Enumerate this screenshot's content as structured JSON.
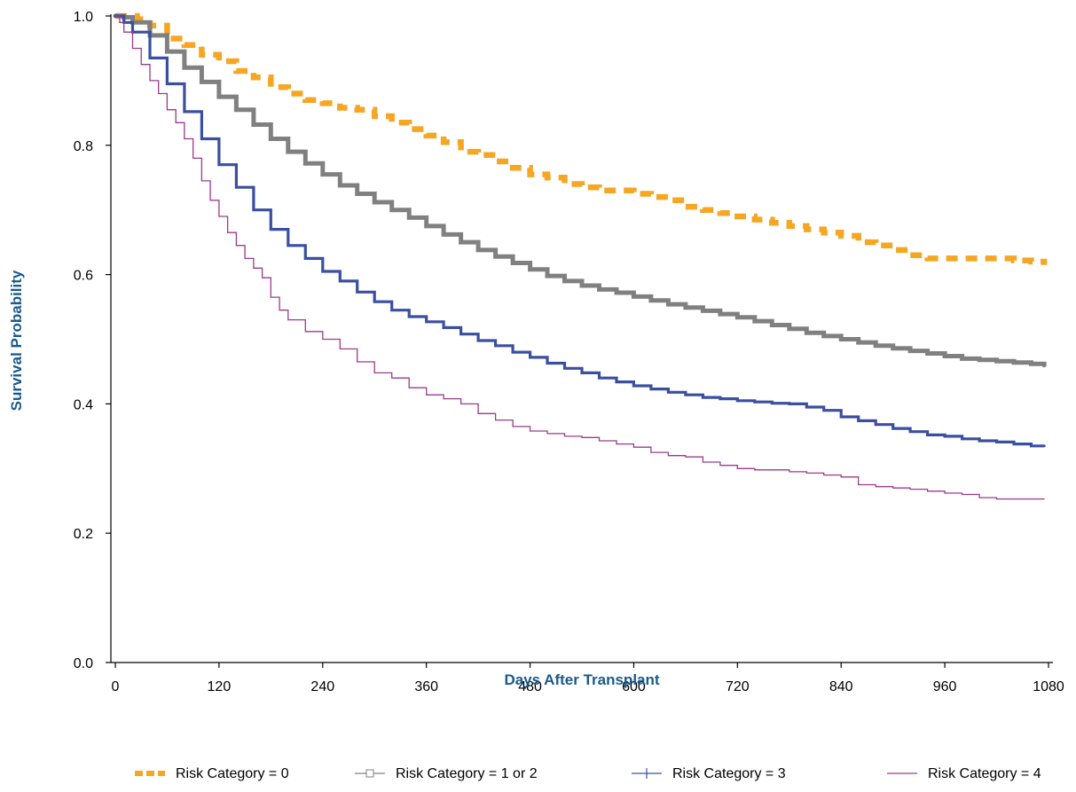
{
  "chart_data": {
    "type": "line",
    "title": "",
    "xlabel": "Days After Transplant",
    "ylabel": "Survival Probability",
    "xlim": [
      0,
      1080
    ],
    "ylim": [
      0,
      1
    ],
    "x_ticks": [
      "0",
      "120",
      "240",
      "360",
      "480",
      "600",
      "720",
      "840",
      "960",
      "1080"
    ],
    "y_ticks": [
      "0.0",
      "0.2",
      "0.4",
      "0.6",
      "0.8",
      "1.0"
    ],
    "grid": false,
    "legend_position": "bottom",
    "series": [
      {
        "name": "Risk Category = 0",
        "color": "#f5a623",
        "style": "dashed-thick",
        "points": [
          [
            0,
            1.0
          ],
          [
            15,
            1.0
          ],
          [
            25,
            0.995
          ],
          [
            40,
            0.985
          ],
          [
            60,
            0.965
          ],
          [
            80,
            0.955
          ],
          [
            100,
            0.94
          ],
          [
            120,
            0.93
          ],
          [
            140,
            0.915
          ],
          [
            160,
            0.905
          ],
          [
            180,
            0.89
          ],
          [
            200,
            0.88
          ],
          [
            220,
            0.87
          ],
          [
            240,
            0.865
          ],
          [
            260,
            0.858
          ],
          [
            280,
            0.855
          ],
          [
            300,
            0.845
          ],
          [
            320,
            0.835
          ],
          [
            340,
            0.825
          ],
          [
            360,
            0.815
          ],
          [
            380,
            0.805
          ],
          [
            400,
            0.79
          ],
          [
            420,
            0.785
          ],
          [
            440,
            0.775
          ],
          [
            460,
            0.765
          ],
          [
            480,
            0.755
          ],
          [
            500,
            0.75
          ],
          [
            520,
            0.74
          ],
          [
            540,
            0.735
          ],
          [
            560,
            0.73
          ],
          [
            580,
            0.73
          ],
          [
            600,
            0.725
          ],
          [
            620,
            0.72
          ],
          [
            640,
            0.715
          ],
          [
            660,
            0.705
          ],
          [
            680,
            0.7
          ],
          [
            700,
            0.695
          ],
          [
            720,
            0.69
          ],
          [
            740,
            0.685
          ],
          [
            760,
            0.68
          ],
          [
            780,
            0.675
          ],
          [
            800,
            0.67
          ],
          [
            820,
            0.665
          ],
          [
            840,
            0.66
          ],
          [
            860,
            0.65
          ],
          [
            880,
            0.645
          ],
          [
            900,
            0.638
          ],
          [
            920,
            0.63
          ],
          [
            940,
            0.625
          ],
          [
            960,
            0.625
          ],
          [
            980,
            0.625
          ],
          [
            1000,
            0.625
          ],
          [
            1020,
            0.625
          ],
          [
            1040,
            0.622
          ],
          [
            1060,
            0.62
          ],
          [
            1075,
            0.615
          ]
        ]
      },
      {
        "name": "Risk Category = 1 or 2",
        "color": "#808080",
        "style": "solid-thick",
        "points": [
          [
            0,
            1.0
          ],
          [
            10,
            0.998
          ],
          [
            20,
            0.99
          ],
          [
            40,
            0.97
          ],
          [
            60,
            0.945
          ],
          [
            80,
            0.92
          ],
          [
            100,
            0.898
          ],
          [
            120,
            0.875
          ],
          [
            140,
            0.855
          ],
          [
            160,
            0.832
          ],
          [
            180,
            0.81
          ],
          [
            200,
            0.79
          ],
          [
            220,
            0.772
          ],
          [
            240,
            0.755
          ],
          [
            260,
            0.738
          ],
          [
            280,
            0.725
          ],
          [
            300,
            0.712
          ],
          [
            320,
            0.7
          ],
          [
            340,
            0.688
          ],
          [
            360,
            0.675
          ],
          [
            380,
            0.662
          ],
          [
            400,
            0.65
          ],
          [
            420,
            0.638
          ],
          [
            440,
            0.628
          ],
          [
            460,
            0.618
          ],
          [
            480,
            0.608
          ],
          [
            500,
            0.598
          ],
          [
            520,
            0.59
          ],
          [
            540,
            0.583
          ],
          [
            560,
            0.577
          ],
          [
            580,
            0.572
          ],
          [
            600,
            0.566
          ],
          [
            620,
            0.56
          ],
          [
            640,
            0.554
          ],
          [
            660,
            0.549
          ],
          [
            680,
            0.544
          ],
          [
            700,
            0.539
          ],
          [
            720,
            0.534
          ],
          [
            740,
            0.528
          ],
          [
            760,
            0.522
          ],
          [
            780,
            0.516
          ],
          [
            800,
            0.51
          ],
          [
            820,
            0.505
          ],
          [
            840,
            0.5
          ],
          [
            860,
            0.495
          ],
          [
            880,
            0.49
          ],
          [
            900,
            0.486
          ],
          [
            920,
            0.482
          ],
          [
            940,
            0.478
          ],
          [
            960,
            0.474
          ],
          [
            980,
            0.47
          ],
          [
            1000,
            0.468
          ],
          [
            1020,
            0.466
          ],
          [
            1040,
            0.464
          ],
          [
            1060,
            0.462
          ],
          [
            1075,
            0.46
          ]
        ]
      },
      {
        "name": "Risk Category = 3",
        "color": "#3a4fa0",
        "style": "solid",
        "points": [
          [
            0,
            1.0
          ],
          [
            10,
            0.99
          ],
          [
            20,
            0.975
          ],
          [
            40,
            0.935
          ],
          [
            60,
            0.895
          ],
          [
            80,
            0.852
          ],
          [
            100,
            0.81
          ],
          [
            120,
            0.77
          ],
          [
            140,
            0.735
          ],
          [
            160,
            0.7
          ],
          [
            180,
            0.67
          ],
          [
            200,
            0.645
          ],
          [
            220,
            0.625
          ],
          [
            240,
            0.605
          ],
          [
            260,
            0.59
          ],
          [
            280,
            0.573
          ],
          [
            300,
            0.558
          ],
          [
            320,
            0.545
          ],
          [
            340,
            0.535
          ],
          [
            360,
            0.527
          ],
          [
            380,
            0.518
          ],
          [
            400,
            0.508
          ],
          [
            420,
            0.498
          ],
          [
            440,
            0.49
          ],
          [
            460,
            0.48
          ],
          [
            480,
            0.472
          ],
          [
            500,
            0.463
          ],
          [
            520,
            0.455
          ],
          [
            540,
            0.448
          ],
          [
            560,
            0.44
          ],
          [
            580,
            0.434
          ],
          [
            600,
            0.428
          ],
          [
            620,
            0.423
          ],
          [
            640,
            0.418
          ],
          [
            660,
            0.414
          ],
          [
            680,
            0.41
          ],
          [
            700,
            0.408
          ],
          [
            720,
            0.405
          ],
          [
            740,
            0.403
          ],
          [
            760,
            0.401
          ],
          [
            780,
            0.4
          ],
          [
            800,
            0.395
          ],
          [
            820,
            0.39
          ],
          [
            840,
            0.38
          ],
          [
            860,
            0.374
          ],
          [
            880,
            0.368
          ],
          [
            900,
            0.362
          ],
          [
            920,
            0.357
          ],
          [
            940,
            0.352
          ],
          [
            960,
            0.35
          ],
          [
            980,
            0.346
          ],
          [
            1000,
            0.343
          ],
          [
            1020,
            0.341
          ],
          [
            1040,
            0.338
          ],
          [
            1060,
            0.335
          ],
          [
            1075,
            0.335
          ]
        ]
      },
      {
        "name": "Risk Category = 4",
        "color": "#9b3a8c",
        "style": "thin",
        "points": [
          [
            0,
            1.0
          ],
          [
            5,
            0.99
          ],
          [
            10,
            0.975
          ],
          [
            20,
            0.95
          ],
          [
            30,
            0.925
          ],
          [
            40,
            0.9
          ],
          [
            50,
            0.88
          ],
          [
            60,
            0.855
          ],
          [
            70,
            0.835
          ],
          [
            80,
            0.81
          ],
          [
            90,
            0.78
          ],
          [
            100,
            0.745
          ],
          [
            110,
            0.715
          ],
          [
            120,
            0.69
          ],
          [
            130,
            0.665
          ],
          [
            140,
            0.645
          ],
          [
            150,
            0.625
          ],
          [
            160,
            0.61
          ],
          [
            170,
            0.595
          ],
          [
            180,
            0.565
          ],
          [
            190,
            0.545
          ],
          [
            200,
            0.53
          ],
          [
            220,
            0.512
          ],
          [
            240,
            0.5
          ],
          [
            260,
            0.485
          ],
          [
            280,
            0.465
          ],
          [
            300,
            0.448
          ],
          [
            320,
            0.44
          ],
          [
            340,
            0.425
          ],
          [
            360,
            0.414
          ],
          [
            380,
            0.408
          ],
          [
            400,
            0.4
          ],
          [
            420,
            0.385
          ],
          [
            440,
            0.375
          ],
          [
            460,
            0.365
          ],
          [
            480,
            0.358
          ],
          [
            500,
            0.354
          ],
          [
            520,
            0.35
          ],
          [
            540,
            0.348
          ],
          [
            560,
            0.343
          ],
          [
            580,
            0.338
          ],
          [
            600,
            0.333
          ],
          [
            620,
            0.325
          ],
          [
            640,
            0.32
          ],
          [
            660,
            0.318
          ],
          [
            680,
            0.31
          ],
          [
            700,
            0.305
          ],
          [
            720,
            0.3
          ],
          [
            740,
            0.298
          ],
          [
            760,
            0.298
          ],
          [
            780,
            0.295
          ],
          [
            800,
            0.293
          ],
          [
            820,
            0.29
          ],
          [
            840,
            0.287
          ],
          [
            860,
            0.275
          ],
          [
            880,
            0.272
          ],
          [
            900,
            0.27
          ],
          [
            920,
            0.268
          ],
          [
            940,
            0.265
          ],
          [
            960,
            0.262
          ],
          [
            980,
            0.26
          ],
          [
            1000,
            0.255
          ],
          [
            1020,
            0.253
          ],
          [
            1040,
            0.253
          ],
          [
            1060,
            0.253
          ],
          [
            1075,
            0.253
          ]
        ]
      }
    ]
  }
}
